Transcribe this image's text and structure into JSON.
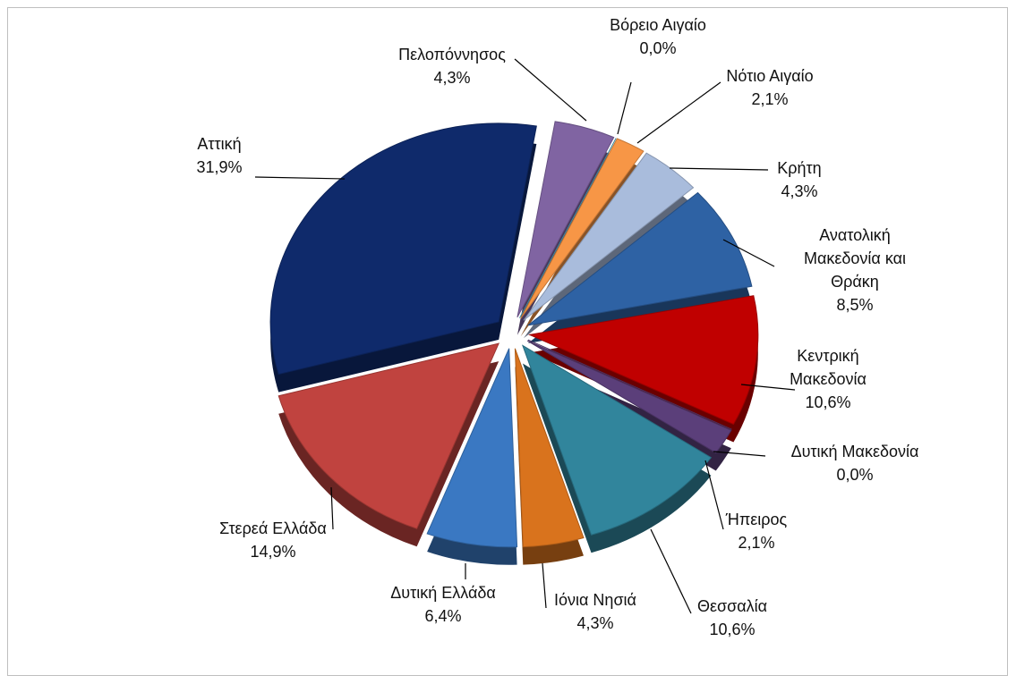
{
  "chart_data": {
    "type": "pie",
    "categories": [
      "Βόρειο Αιγαίο",
      "Νότιο Αιγαίο",
      "Κρήτη",
      "Ανατολική Μακεδονία και Θράκη",
      "Κεντρική Μακεδονία",
      "Δυτική Μακεδονία",
      "Ήπειρος",
      "Θεσσαλία",
      "Ιόνια Νησιά",
      "Δυτική Ελλάδα",
      "Στερεά Ελλάδα",
      "Αττική",
      "Πελοπόννησος"
    ],
    "values": [
      0.0,
      2.1,
      4.3,
      8.5,
      10.6,
      0.0,
      2.1,
      10.6,
      4.3,
      6.4,
      14.9,
      31.9,
      4.3
    ],
    "value_labels": [
      "0,0%",
      "2,1%",
      "4,3%",
      "8,5%",
      "10,6%",
      "0,0%",
      "2,1%",
      "10,6%",
      "4,3%",
      "6,4%",
      "14,9%",
      "31,9%",
      "4,3%"
    ],
    "colors": [
      "#4bacc6",
      "#f79646",
      "#a9bcdc",
      "#2e62a4",
      "#c00000",
      "#5b3f7a",
      "#5b3f7a",
      "#31859c",
      "#d9731d",
      "#3a78c2",
      "#c0433f",
      "#0f2a6b",
      "#8064a2"
    ]
  }
}
